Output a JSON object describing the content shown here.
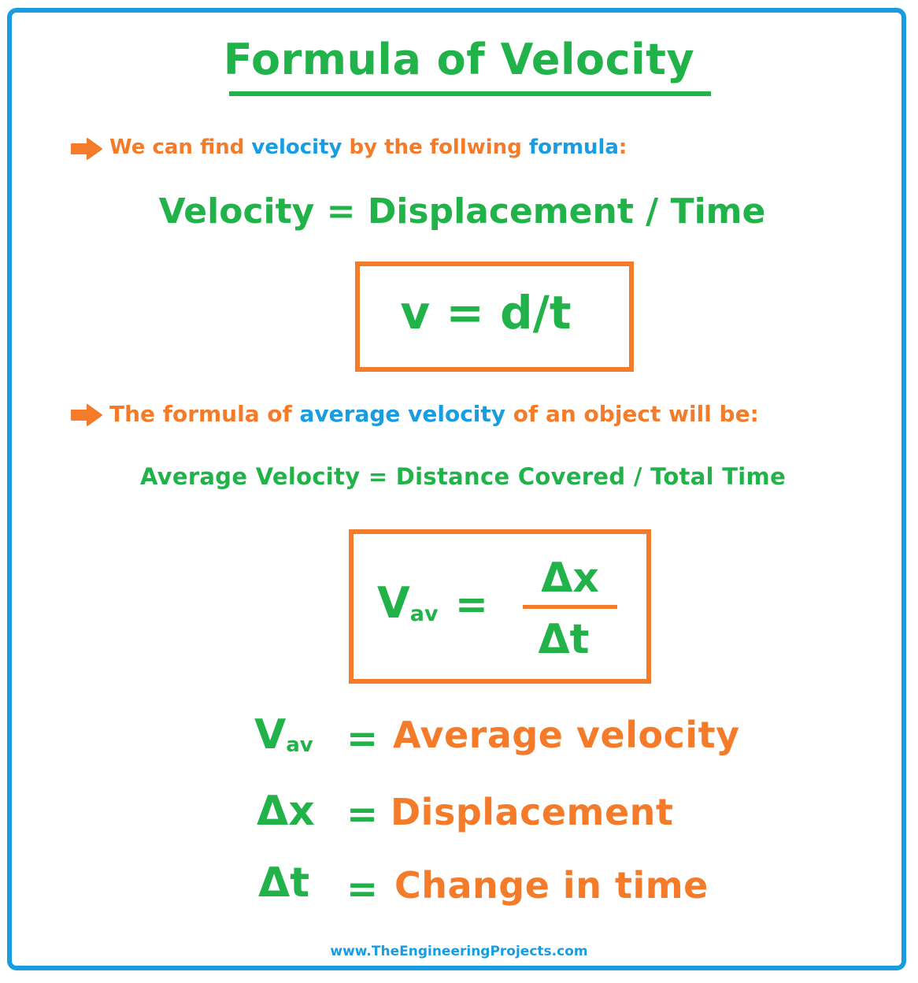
{
  "title": "Formula of Velocity",
  "intro1": {
    "part1": "We can find ",
    "part2": "velocity",
    "part3": " by the follwing ",
    "part4": "formula",
    "part5": ":"
  },
  "word_formula": "Velocity = Displacement / Time",
  "symbol_formula": "v = d/t",
  "intro2": {
    "part1": "The formula of ",
    "part2": "average velocity",
    "part3": " of an object will be:"
  },
  "avg_word_formula": "Average Velocity = Distance Covered / Total Time",
  "avg_formula": {
    "lhs_main": "V",
    "lhs_sub": "av",
    "equals": "=",
    "numerator": "Δx",
    "denominator": "Δt"
  },
  "legend": [
    {
      "symbol": "V",
      "sub": "av",
      "equals": "=",
      "meaning": "Average velocity"
    },
    {
      "symbol": "Δx",
      "sub": "",
      "equals": "=",
      "meaning": "Displacement"
    },
    {
      "symbol": "Δt",
      "sub": "",
      "equals": "=",
      "meaning": "Change in time"
    }
  ],
  "footer": "www.TheEngineeringProjects.com",
  "colors": {
    "green": "#21b34a",
    "orange": "#f47b2a",
    "blue": "#1a9ce0"
  },
  "icons": [
    "arrow-right-icon",
    "arrow-right-icon"
  ]
}
